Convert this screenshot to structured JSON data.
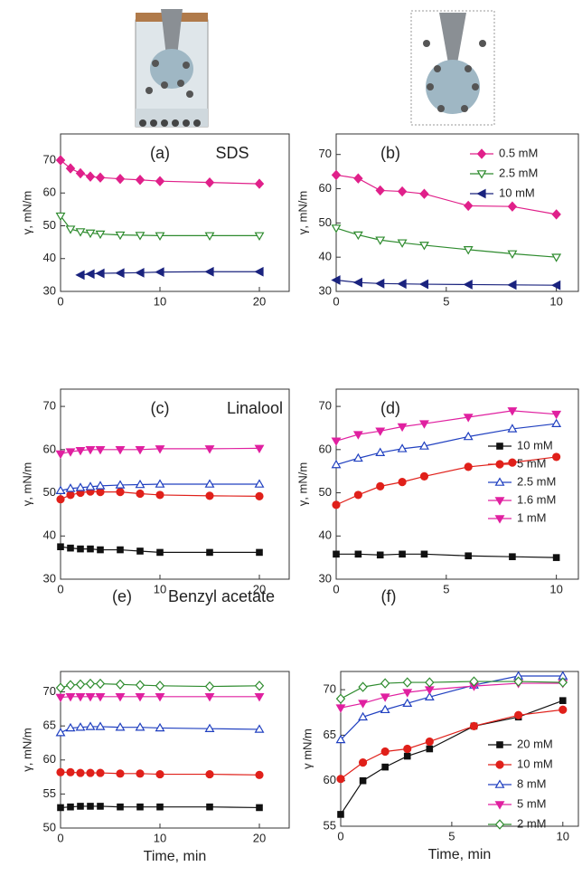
{
  "chart_data": [
    {
      "type": "line",
      "panel_label": "(a)",
      "title": "SDS",
      "ylabel": "γ, mN/m",
      "x": [
        0,
        1,
        2,
        3,
        4,
        6,
        8,
        10,
        15,
        20
      ],
      "xlim": [
        0,
        23
      ],
      "xticks": [
        0,
        10,
        20
      ],
      "ylim": [
        30,
        78
      ],
      "yticks": [
        30,
        40,
        50,
        60,
        70
      ],
      "series": [
        {
          "color": "#e0208a",
          "marker": "diamond",
          "values": [
            70,
            67.5,
            66,
            65,
            64.7,
            64.3,
            64,
            63.6,
            63.2,
            62.8
          ]
        },
        {
          "color": "#2e8b2e",
          "marker": "triangle-down-open",
          "values": [
            53,
            49,
            48.2,
            47.8,
            47.5,
            47.2,
            47.1,
            47.0,
            47.0,
            47.0
          ]
        },
        {
          "color": "#1a237e",
          "marker": "triangle-left",
          "values": [
            null,
            null,
            35,
            35.3,
            35.5,
            35.6,
            35.7,
            35.9,
            36,
            36
          ]
        }
      ]
    },
    {
      "type": "line",
      "panel_label": "(b)",
      "ylabel": "γ, mN/m",
      "x": [
        0,
        1,
        2,
        3,
        4,
        6,
        8,
        10
      ],
      "xlim": [
        0,
        11
      ],
      "xticks": [
        0,
        5,
        10
      ],
      "ylim": [
        30,
        76
      ],
      "yticks": [
        30,
        40,
        50,
        60,
        70
      ],
      "legend": "upper right",
      "series": [
        {
          "name": "0.5 mM",
          "color": "#e0208a",
          "marker": "diamond",
          "values": [
            64,
            63,
            59.5,
            59.2,
            58.5,
            55,
            54.8,
            52.5
          ]
        },
        {
          "name": "2.5 mM",
          "color": "#2e8b2e",
          "marker": "triangle-down-open",
          "values": [
            48.5,
            46.5,
            45,
            44.2,
            43.5,
            42.2,
            41,
            40
          ]
        },
        {
          "name": "10 mM",
          "color": "#1a237e",
          "marker": "triangle-left",
          "values": [
            33.3,
            32.6,
            32.3,
            32.2,
            32.1,
            32,
            31.9,
            31.8
          ]
        }
      ]
    },
    {
      "type": "line",
      "panel_label": "(c)",
      "title": "Linalool",
      "ylabel": "γ, mN/m",
      "x": [
        0,
        1,
        2,
        3,
        4,
        6,
        8,
        10,
        15,
        20
      ],
      "xlim": [
        0,
        23
      ],
      "xticks": [
        0,
        10,
        20
      ],
      "ylim": [
        30,
        74
      ],
      "yticks": [
        30,
        40,
        50,
        60,
        70
      ],
      "series": [
        {
          "color": "#111111",
          "marker": "square",
          "values": [
            37.5,
            37.2,
            37,
            37,
            36.8,
            36.8,
            36.5,
            36.2,
            36.2,
            36.2
          ]
        },
        {
          "color": "#e0201a",
          "marker": "circle",
          "values": [
            48.5,
            49.5,
            50,
            50.3,
            50.2,
            50.2,
            49.8,
            49.5,
            49.3,
            49.2
          ]
        },
        {
          "color": "#2040c0",
          "marker": "triangle-up-open",
          "values": [
            50.5,
            51,
            51.2,
            51.4,
            51.6,
            51.8,
            51.9,
            52,
            52,
            52
          ]
        },
        {
          "color": "#e020a0",
          "marker": "triangle-down",
          "values": [
            59,
            59.5,
            59.8,
            60,
            60,
            60,
            60,
            60.2,
            60.2,
            60.3
          ]
        }
      ]
    },
    {
      "type": "line",
      "panel_label": "(d)",
      "ylabel": "γ, mN/m",
      "x": [
        0,
        1,
        2,
        3,
        4,
        6,
        8,
        10
      ],
      "xlim": [
        0,
        11
      ],
      "xticks": [
        0,
        5,
        10
      ],
      "ylim": [
        30,
        74
      ],
      "yticks": [
        30,
        40,
        50,
        60,
        70
      ],
      "legend": "right",
      "series": [
        {
          "name": "10 mM",
          "color": "#111111",
          "marker": "square",
          "values": [
            35.8,
            35.8,
            35.6,
            35.8,
            35.8,
            35.4,
            35.2,
            35
          ]
        },
        {
          "name": "5 mM",
          "color": "#e0201a",
          "marker": "circle",
          "values": [
            47.2,
            49.5,
            51.5,
            52.5,
            53.8,
            56,
            57,
            58.3
          ]
        },
        {
          "name": "2.5 mM",
          "color": "#2040c0",
          "marker": "triangle-up-open",
          "values": [
            56.5,
            58,
            59.3,
            60.2,
            60.8,
            63,
            64.8,
            66
          ]
        },
        {
          "name": "1.6 mM",
          "color": "#e020a0",
          "marker": "triangle-down",
          "values": [
            null,
            null,
            null,
            null,
            null,
            null,
            null,
            null
          ]
        },
        {
          "name": "1 mM",
          "color": "#e020a0",
          "marker": "triangle-down",
          "values": [
            62,
            63.5,
            64.3,
            65.3,
            66,
            67.5,
            69,
            68.2
          ]
        }
      ]
    },
    {
      "type": "line",
      "panel_label": "(e)",
      "title": "Benzyl acetate",
      "ylabel": "γ, mN/m",
      "xlabel": "Time, min",
      "x": [
        0,
        1,
        2,
        3,
        4,
        6,
        8,
        10,
        15,
        20
      ],
      "xlim": [
        0,
        23
      ],
      "xticks": [
        0,
        10,
        20
      ],
      "ylim": [
        50,
        73
      ],
      "yticks": [
        50,
        55,
        60,
        65,
        70
      ],
      "series": [
        {
          "color": "#111111",
          "marker": "square",
          "values": [
            53,
            53.1,
            53.2,
            53.2,
            53.2,
            53.1,
            53.1,
            53.1,
            53.1,
            53
          ]
        },
        {
          "color": "#e0201a",
          "marker": "circle",
          "values": [
            58.2,
            58.2,
            58.1,
            58.1,
            58.1,
            58,
            58,
            57.9,
            57.9,
            57.8
          ]
        },
        {
          "color": "#2040c0",
          "marker": "triangle-up-open",
          "values": [
            64,
            64.7,
            64.8,
            64.9,
            64.9,
            64.8,
            64.8,
            64.7,
            64.6,
            64.5
          ]
        },
        {
          "color": "#e020a0",
          "marker": "triangle-down",
          "values": [
            69.2,
            69.3,
            69.3,
            69.3,
            69.3,
            69.3,
            69.3,
            69.3,
            69.3,
            69.3
          ]
        },
        {
          "color": "#2e8b2e",
          "marker": "diamond-open",
          "values": [
            70.6,
            71,
            71.1,
            71.2,
            71.2,
            71.1,
            71,
            70.9,
            70.8,
            70.9
          ]
        }
      ]
    },
    {
      "type": "line",
      "panel_label": "(f)",
      "ylabel": "γ mN/m",
      "xlabel": "Time, min",
      "x": [
        0,
        1,
        2,
        3,
        4,
        6,
        8,
        10
      ],
      "xlim": [
        0,
        10.7
      ],
      "xticks": [
        0,
        5,
        10
      ],
      "ylim": [
        55,
        72
      ],
      "yticks": [
        55,
        60,
        65,
        70
      ],
      "legend": "lower right",
      "series": [
        {
          "name": "20 mM",
          "color": "#111111",
          "marker": "square",
          "values": [
            56.3,
            60,
            61.5,
            62.7,
            63.5,
            66,
            67,
            68.8
          ]
        },
        {
          "name": "10 mM",
          "color": "#e0201a",
          "marker": "circle",
          "values": [
            60.2,
            62,
            63.2,
            63.5,
            64.3,
            66,
            67.2,
            67.8
          ]
        },
        {
          "name": "8 mM",
          "color": "#2040c0",
          "marker": "triangle-up-open",
          "values": [
            64.5,
            67,
            67.8,
            68.5,
            69.2,
            70.5,
            71.5,
            71.5
          ]
        },
        {
          "name": "5 mM",
          "color": "#e020a0",
          "marker": "triangle-down",
          "values": [
            68,
            68.5,
            69.2,
            69.7,
            70,
            70.4,
            70.7,
            70.7
          ]
        },
        {
          "name": "2 mM",
          "color": "#2e8b2e",
          "marker": "diamond-open",
          "values": [
            69,
            70.3,
            70.7,
            70.8,
            70.8,
            70.9,
            70.9,
            70.8
          ]
        }
      ]
    }
  ]
}
